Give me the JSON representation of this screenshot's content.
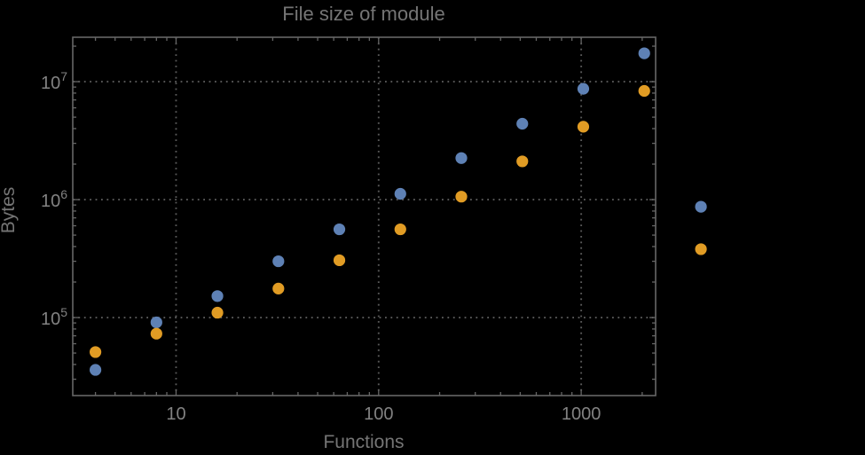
{
  "window": {
    "background": "#000000"
  },
  "chart_data": {
    "type": "scatter",
    "title": "File size of module",
    "xlabel": "Functions",
    "ylabel": "Bytes",
    "xscale": "log",
    "yscale": "log",
    "xlim": [
      3.09,
      2330
    ],
    "ylim": [
      21800,
      23800000
    ],
    "grid": true,
    "grid_style": "dotted",
    "legend": "none",
    "x_major_ticks": [
      10,
      100,
      1000
    ],
    "x_major_labels": [
      "10",
      "100",
      "1000"
    ],
    "y_major_ticks": [
      100000,
      1000000,
      10000000
    ],
    "y_major_labels": [
      {
        "base": "10",
        "exp": "5"
      },
      {
        "base": "10",
        "exp": "6"
      },
      {
        "base": "10",
        "exp": "7"
      }
    ],
    "series": [
      {
        "name": "series-blue",
        "color": "#5E81B5",
        "marker": "circle",
        "points": [
          [
            4,
            36000
          ],
          [
            8,
            91000
          ],
          [
            16,
            152000
          ],
          [
            32,
            300000
          ],
          [
            64,
            560000
          ],
          [
            128,
            1120000
          ],
          [
            256,
            2250000
          ],
          [
            512,
            4400000
          ],
          [
            1024,
            8700000
          ],
          [
            2048,
            17400000
          ],
          [
            3900,
            870000
          ]
        ]
      },
      {
        "name": "series-orange",
        "color": "#E19C24",
        "marker": "circle",
        "points": [
          [
            4,
            51000
          ],
          [
            8,
            73000
          ],
          [
            16,
            110000
          ],
          [
            32,
            176000
          ],
          [
            64,
            306000
          ],
          [
            128,
            560000
          ],
          [
            256,
            1060000
          ],
          [
            512,
            2110000
          ],
          [
            1024,
            4150000
          ],
          [
            2048,
            8350000
          ],
          [
            3900,
            380000
          ]
        ]
      }
    ],
    "colors": {
      "background": "#000000",
      "frame": "#666666",
      "grid": "#5a5a5a",
      "tick_label": "#828282",
      "title": "#757575",
      "axis_label": "#757575"
    }
  }
}
